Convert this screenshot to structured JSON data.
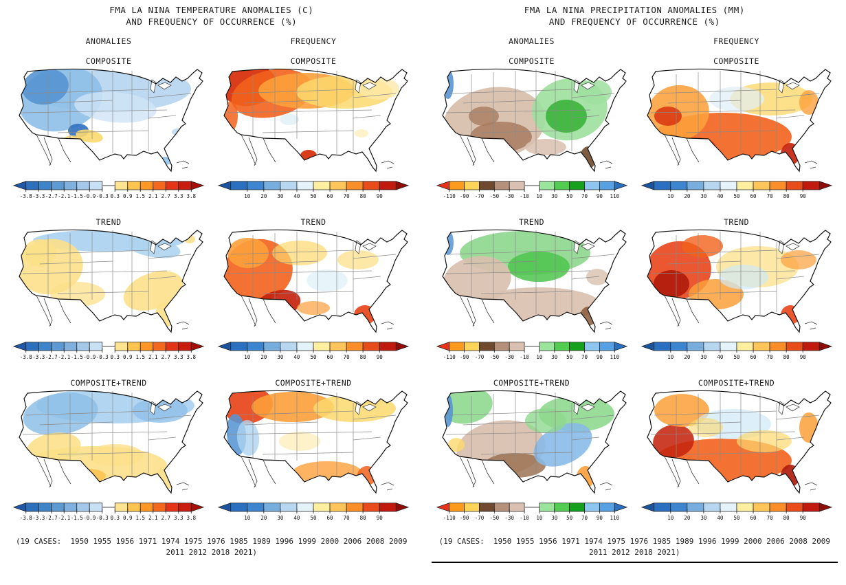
{
  "figure": {
    "panels": [
      {
        "id": "temperature",
        "title_line1": "FMA LA NINA TEMPERATURE ANOMALIES (C)",
        "title_line2": "AND FREQUENCY OF OCCURRENCE (%)",
        "column_headers": [
          "ANOMALIES",
          "FREQUENCY"
        ],
        "row_labels": [
          "COMPOSITE",
          "TREND",
          "COMPOSITE+TREND"
        ],
        "caption_line1": "(19 CASES:  1950 1955 1956 1971 1974 1975 1976 1985 1989 1996 1999 2000 2006 2008 2009",
        "caption_line2": "2011 2012 2018 2021)"
      },
      {
        "id": "precipitation",
        "title_line1": "FMA LA NINA PRECIPITATION ANOMALIES (MM)",
        "title_line2": "AND FREQUENCY OF OCCURRENCE (%)",
        "column_headers": [
          "ANOMALIES",
          "FREQUENCY"
        ],
        "row_labels": [
          "COMPOSITE",
          "TREND",
          "COMPOSITE+TREND"
        ],
        "caption_line1": "(19 CASES:  1950 1955 1956 1971 1974 1975 1976 1985 1989 1996 1999 2000 2006 2008 2009",
        "caption_line2": "2011 2012 2018 2021)"
      }
    ]
  },
  "colorbars": {
    "temp_anom": {
      "unit": "C",
      "ticks": [
        "-3.8",
        "-3.3",
        "-2.7",
        "-2.1",
        "-1.5",
        "-0.9",
        "-0.3",
        "0.3",
        "0.9",
        "1.5",
        "2.1",
        "2.7",
        "3.3",
        "3.8"
      ],
      "cells": [
        "#2c6fbb",
        "#3f83c8",
        "#5e9ad2",
        "#7fb0de",
        "#a3c8ea",
        "#c8e0f4",
        "GAP",
        "#fee491",
        "#fdc44f",
        "#fd9827",
        "#f4681e",
        "#e33417",
        "#c81c0f"
      ],
      "arrow_left": "#1f58a8",
      "arrow_right": "#a50f08"
    },
    "freq": {
      "unit": "%",
      "ticks": [
        "10",
        "20",
        "30",
        "40",
        "50",
        "60",
        "70",
        "80",
        "90"
      ],
      "cells": [
        "#2a6fc0",
        "#3d85cf",
        "#77aede",
        "#b6d7ef",
        "#e4f2fa",
        "#fdeea0",
        "#fdc55a",
        "#fa8f2a",
        "#e84c1a",
        "#c01a0e"
      ],
      "arrow_left": "#1b55a0",
      "arrow_right": "#8f0d06"
    },
    "precip_anom": {
      "unit": "MM",
      "ticks": [
        "-110",
        "-90",
        "-70",
        "-50",
        "-30",
        "-10",
        "10",
        "30",
        "50",
        "70",
        "90",
        "110"
      ],
      "cells": [
        "#fb9a1c",
        "#fcd45a",
        "#6f4a2e",
        "#b5917c",
        "#d9c0b0",
        "GAP",
        "#9be49b",
        "#52cd52",
        "#16a01e",
        "#8ec6ef",
        "#57a0e2"
      ],
      "arrow_left": "#e8321a",
      "arrow_right": "#2a6fc0"
    }
  },
  "maps": [
    {
      "panel": "temperature",
      "row": "COMPOSITE",
      "column": "ANOMALIES",
      "label": "COMPOSITE",
      "regions": [
        [
          140,
          55,
          120,
          34,
          0,
          "#b8d7f0",
          0.95
        ],
        [
          70,
          70,
          62,
          46,
          -15,
          "#8ebfe8",
          0.9
        ],
        [
          48,
          52,
          34,
          26,
          -10,
          "#5795d2",
          0.9
        ],
        [
          150,
          82,
          60,
          22,
          5,
          "#cfe4f6",
          0.8
        ],
        [
          96,
          116,
          15,
          10,
          0,
          "#2f6fbf",
          0.9
        ],
        [
          112,
          124,
          20,
          9,
          10,
          "#fcd96d",
          0.9
        ],
        [
          88,
          130,
          14,
          7,
          0,
          "#fcd96d",
          0.8
        ],
        [
          222,
          160,
          10,
          6,
          0,
          "#8ebfe8",
          0.85
        ],
        [
          240,
          118,
          8,
          5,
          0,
          "#b8d7f0",
          0.8
        ]
      ]
    },
    {
      "panel": "temperature",
      "row": "COMPOSITE",
      "column": "FREQUENCY",
      "label": "COMPOSITE",
      "regions": [
        [
          46,
          50,
          40,
          30,
          -10,
          "#d8330f",
          0.95
        ],
        [
          80,
          62,
          60,
          34,
          -12,
          "#f2621c",
          0.9
        ],
        [
          130,
          58,
          70,
          26,
          0,
          "#fca03a",
          0.9
        ],
        [
          185,
          60,
          70,
          24,
          0,
          "#fcd96d",
          0.85
        ],
        [
          235,
          55,
          30,
          16,
          0,
          "#fde9a9",
          0.8
        ],
        [
          20,
          95,
          10,
          22,
          0,
          "#f2621c",
          0.85
        ],
        [
          133,
          152,
          12,
          8,
          0,
          "#d8330f",
          0.95
        ],
        [
          105,
          100,
          14,
          8,
          0,
          "#dff0f8",
          0.8
        ],
        [
          210,
          120,
          10,
          6,
          0,
          "#fde9a9",
          0.6
        ]
      ]
    },
    {
      "panel": "temperature",
      "row": "TREND",
      "column": "ANOMALIES",
      "label": "TREND",
      "regions": [
        [
          140,
          42,
          110,
          16,
          0,
          "#aed4f0",
          0.95
        ],
        [
          205,
          52,
          40,
          14,
          10,
          "#aed4f0",
          0.9
        ],
        [
          55,
          80,
          48,
          40,
          -10,
          "#fce08a",
          0.9
        ],
        [
          40,
          60,
          24,
          20,
          0,
          "#fce08a",
          0.9
        ],
        [
          95,
          120,
          40,
          18,
          0,
          "#fce08a",
          0.75
        ],
        [
          205,
          115,
          45,
          26,
          -20,
          "#fce08a",
          0.9
        ],
        [
          222,
          150,
          14,
          18,
          0,
          "#fce08a",
          0.9
        ],
        [
          100,
          150,
          18,
          10,
          0,
          "#fcc24e",
          0.9
        ],
        [
          258,
          40,
          8,
          6,
          0,
          "#fce08a",
          0.9
        ]
      ]
    },
    {
      "panel": "temperature",
      "row": "TREND",
      "column": "FREQUENCY",
      "label": "TREND",
      "regions": [
        [
          60,
          85,
          50,
          45,
          -10,
          "#f2621c",
          0.9
        ],
        [
          88,
          135,
          34,
          20,
          -15,
          "#c5240e",
          0.92
        ],
        [
          45,
          60,
          30,
          22,
          0,
          "#fca03a",
          0.9
        ],
        [
          120,
          60,
          40,
          18,
          0,
          "#fcd96d",
          0.7
        ],
        [
          160,
          100,
          30,
          16,
          0,
          "#dff0f8",
          0.75
        ],
        [
          215,
          150,
          16,
          14,
          0,
          "#e8451a",
          0.92
        ],
        [
          205,
          70,
          30,
          14,
          0,
          "#fcd96d",
          0.6
        ],
        [
          140,
          140,
          24,
          10,
          0,
          "#fca03a",
          0.7
        ]
      ]
    },
    {
      "panel": "temperature",
      "row": "COMPOSITE+TREND",
      "column": "ANOMALIES",
      "label": "COMPOSITE+TREND",
      "regions": [
        [
          150,
          48,
          115,
          26,
          0,
          "#aed4f0",
          0.95
        ],
        [
          70,
          60,
          55,
          30,
          -10,
          "#8ebfe8",
          0.85
        ],
        [
          215,
          55,
          40,
          18,
          0,
          "#8ebfe8",
          0.8
        ],
        [
          120,
          135,
          105,
          28,
          0,
          "#fce08a",
          0.9
        ],
        [
          60,
          110,
          40,
          22,
          -10,
          "#fce08a",
          0.9
        ],
        [
          150,
          120,
          40,
          16,
          0,
          "#fce08a",
          0.8
        ],
        [
          222,
          155,
          14,
          16,
          0,
          "#fce08a",
          0.9
        ],
        [
          110,
          150,
          26,
          10,
          0,
          "#fcc24e",
          0.85
        ]
      ]
    },
    {
      "panel": "temperature",
      "row": "COMPOSITE+TREND",
      "column": "FREQUENCY",
      "label": "COMPOSITE+TREND",
      "regions": [
        [
          45,
          48,
          36,
          26,
          -10,
          "#e8451a",
          0.92
        ],
        [
          110,
          50,
          60,
          22,
          0,
          "#fca03a",
          0.9
        ],
        [
          200,
          52,
          60,
          20,
          0,
          "#fcd96d",
          0.85
        ],
        [
          28,
          90,
          14,
          30,
          -5,
          "#5795d2",
          0.88
        ],
        [
          45,
          95,
          16,
          26,
          -5,
          "#aed4f0",
          0.8
        ],
        [
          160,
          145,
          50,
          16,
          0,
          "#fca03a",
          0.8
        ],
        [
          218,
          150,
          14,
          14,
          0,
          "#f2621c",
          0.85
        ],
        [
          120,
          100,
          30,
          14,
          0,
          "#fde9a9",
          0.6
        ]
      ]
    },
    {
      "panel": "precipitation",
      "row": "COMPOSITE",
      "column": "ANOMALIES",
      "label": "COMPOSITE",
      "regions": [
        [
          85,
          105,
          75,
          52,
          -8,
          "#d9c0ae",
          0.95
        ],
        [
          95,
          125,
          45,
          22,
          0,
          "#a87c5f",
          0.85
        ],
        [
          70,
          95,
          22,
          14,
          0,
          "#a87c5f",
          0.8
        ],
        [
          195,
          85,
          55,
          45,
          -10,
          "#9fdf9f",
          0.92
        ],
        [
          190,
          95,
          30,
          24,
          0,
          "#3cb43c",
          0.9
        ],
        [
          232,
          60,
          24,
          18,
          0,
          "#9fdf9f",
          0.85
        ],
        [
          18,
          48,
          8,
          22,
          0,
          "#5795d2",
          0.9
        ],
        [
          222,
          155,
          12,
          16,
          0,
          "#6f4a2e",
          0.9
        ],
        [
          160,
          140,
          30,
          12,
          0,
          "#d9c0ae",
          0.85
        ]
      ]
    },
    {
      "panel": "precipitation",
      "row": "COMPOSITE",
      "column": "FREQUENCY",
      "label": "COMPOSITE",
      "regions": [
        [
          120,
          125,
          100,
          35,
          0,
          "#f2621c",
          0.9
        ],
        [
          55,
          90,
          45,
          40,
          -10,
          "#fca03a",
          0.88
        ],
        [
          40,
          95,
          20,
          14,
          0,
          "#d8330f",
          0.85
        ],
        [
          218,
          150,
          14,
          16,
          0,
          "#c5240e",
          0.92
        ],
        [
          190,
          70,
          60,
          24,
          0,
          "#fcd96d",
          0.8
        ],
        [
          140,
          70,
          40,
          18,
          0,
          "#dff0f8",
          0.7
        ],
        [
          245,
          75,
          14,
          18,
          0,
          "#fca03a",
          0.8
        ],
        [
          80,
          140,
          30,
          14,
          0,
          "#e8451a",
          0.85
        ]
      ]
    },
    {
      "panel": "precipitation",
      "row": "TREND",
      "column": "ANOMALIES",
      "label": "TREND",
      "regions": [
        [
          130,
          60,
          95,
          32,
          0,
          "#8fd88f",
          0.92
        ],
        [
          150,
          80,
          45,
          22,
          0,
          "#4cc44c",
          0.85
        ],
        [
          60,
          100,
          50,
          35,
          -10,
          "#d9c0ae",
          0.92
        ],
        [
          150,
          135,
          90,
          25,
          0,
          "#d9c0ae",
          0.9
        ],
        [
          18,
          45,
          8,
          18,
          0,
          "#5795d2",
          0.85
        ],
        [
          222,
          152,
          12,
          14,
          0,
          "#8a5a38",
          0.85
        ],
        [
          235,
          95,
          16,
          12,
          0,
          "#d9c0ae",
          0.8
        ]
      ]
    },
    {
      "panel": "precipitation",
      "row": "TREND",
      "column": "FREQUENCY",
      "label": "TREND",
      "regions": [
        [
          55,
          85,
          48,
          42,
          -8,
          "#e8451a",
          0.9
        ],
        [
          45,
          105,
          26,
          20,
          0,
          "#b01c0c",
          0.9
        ],
        [
          110,
          120,
          40,
          22,
          0,
          "#fca03a",
          0.85
        ],
        [
          170,
          80,
          60,
          30,
          0,
          "#fcd96d",
          0.6
        ],
        [
          150,
          95,
          36,
          18,
          0,
          "#cfe8f5",
          0.7
        ],
        [
          218,
          150,
          14,
          14,
          0,
          "#e8451a",
          0.9
        ],
        [
          230,
          70,
          26,
          14,
          0,
          "#fca03a",
          0.7
        ],
        [
          90,
          50,
          30,
          16,
          0,
          "#f2621c",
          0.8
        ]
      ]
    },
    {
      "panel": "precipitation",
      "row": "COMPOSITE+TREND",
      "column": "ANOMALIES",
      "label": "COMPOSITE+TREND",
      "regions": [
        [
          45,
          48,
          38,
          26,
          -10,
          "#8fd88f",
          0.9
        ],
        [
          18,
          55,
          7,
          24,
          0,
          "#5795d2",
          0.9
        ],
        [
          95,
          110,
          65,
          40,
          -8,
          "#d9c0ae",
          0.93
        ],
        [
          115,
          135,
          45,
          18,
          0,
          "#9c7354",
          0.85
        ],
        [
          205,
          60,
          55,
          26,
          0,
          "#8fd88f",
          0.9
        ],
        [
          185,
          105,
          45,
          28,
          -25,
          "#86b9e8",
          0.88
        ],
        [
          218,
          152,
          13,
          16,
          0,
          "#fca03a",
          0.9
        ],
        [
          30,
          105,
          12,
          10,
          0,
          "#fcd96d",
          0.8
        ],
        [
          160,
          70,
          30,
          18,
          0,
          "#8fd88f",
          0.8
        ]
      ]
    },
    {
      "panel": "precipitation",
      "row": "COMPOSITE+TREND",
      "column": "FREQUENCY",
      "label": "COMPOSITE+TREND",
      "regions": [
        [
          120,
          128,
          100,
          32,
          0,
          "#f2621c",
          0.9
        ],
        [
          48,
          100,
          30,
          24,
          -10,
          "#c5240e",
          0.88
        ],
        [
          218,
          150,
          14,
          16,
          0,
          "#b01c0c",
          0.92
        ],
        [
          60,
          55,
          40,
          24,
          0,
          "#fca03a",
          0.85
        ],
        [
          245,
          80,
          14,
          22,
          0,
          "#fca03a",
          0.85
        ],
        [
          135,
          75,
          55,
          22,
          0,
          "#cfe8f5",
          0.7
        ],
        [
          180,
          100,
          40,
          16,
          0,
          "#fcd96d",
          0.7
        ],
        [
          95,
          80,
          25,
          14,
          0,
          "#fcd96d",
          0.6
        ]
      ]
    }
  ]
}
